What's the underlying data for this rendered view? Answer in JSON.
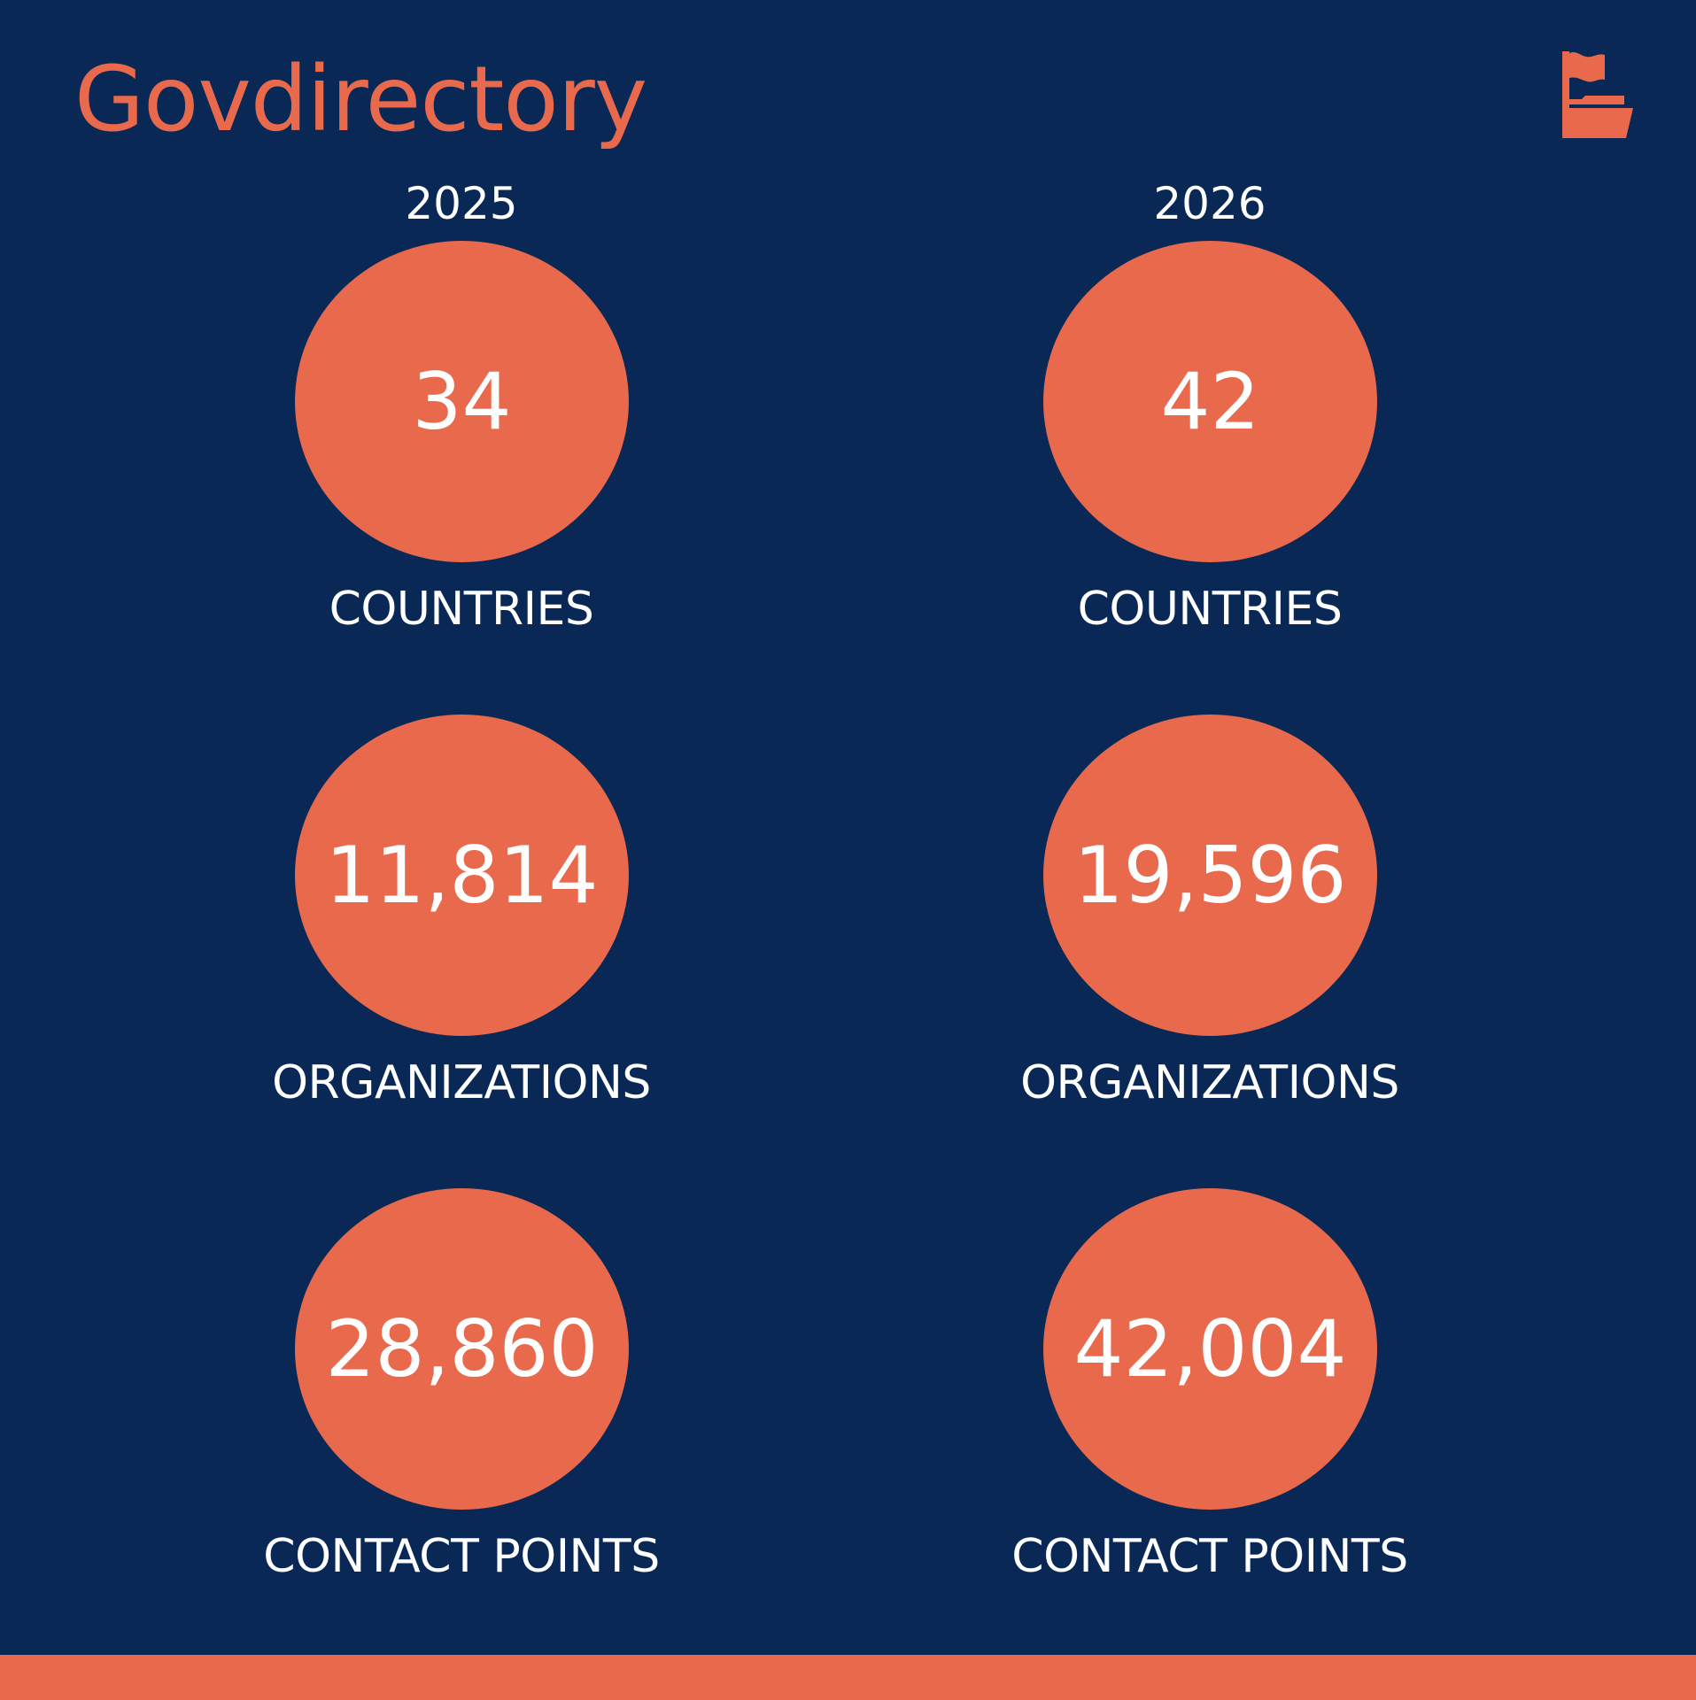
{
  "header": {
    "title": "Govdirectory",
    "logo_icon": "flag-folder-icon"
  },
  "colors": {
    "background": "#092856",
    "accent": "#e8694c",
    "text": "#ffffff"
  },
  "columns": [
    {
      "year": "2025",
      "stats": [
        {
          "value": "34",
          "label": "COUNTRIES"
        },
        {
          "value": "11,814",
          "label": "ORGANIZATIONS"
        },
        {
          "value": "28,860",
          "label": "CONTACT POINTS"
        }
      ]
    },
    {
      "year": "2026",
      "stats": [
        {
          "value": "42",
          "label": "COUNTRIES"
        },
        {
          "value": "19,596",
          "label": "ORGANIZATIONS"
        },
        {
          "value": "42,004",
          "label": "CONTACT POINTS"
        }
      ]
    }
  ]
}
